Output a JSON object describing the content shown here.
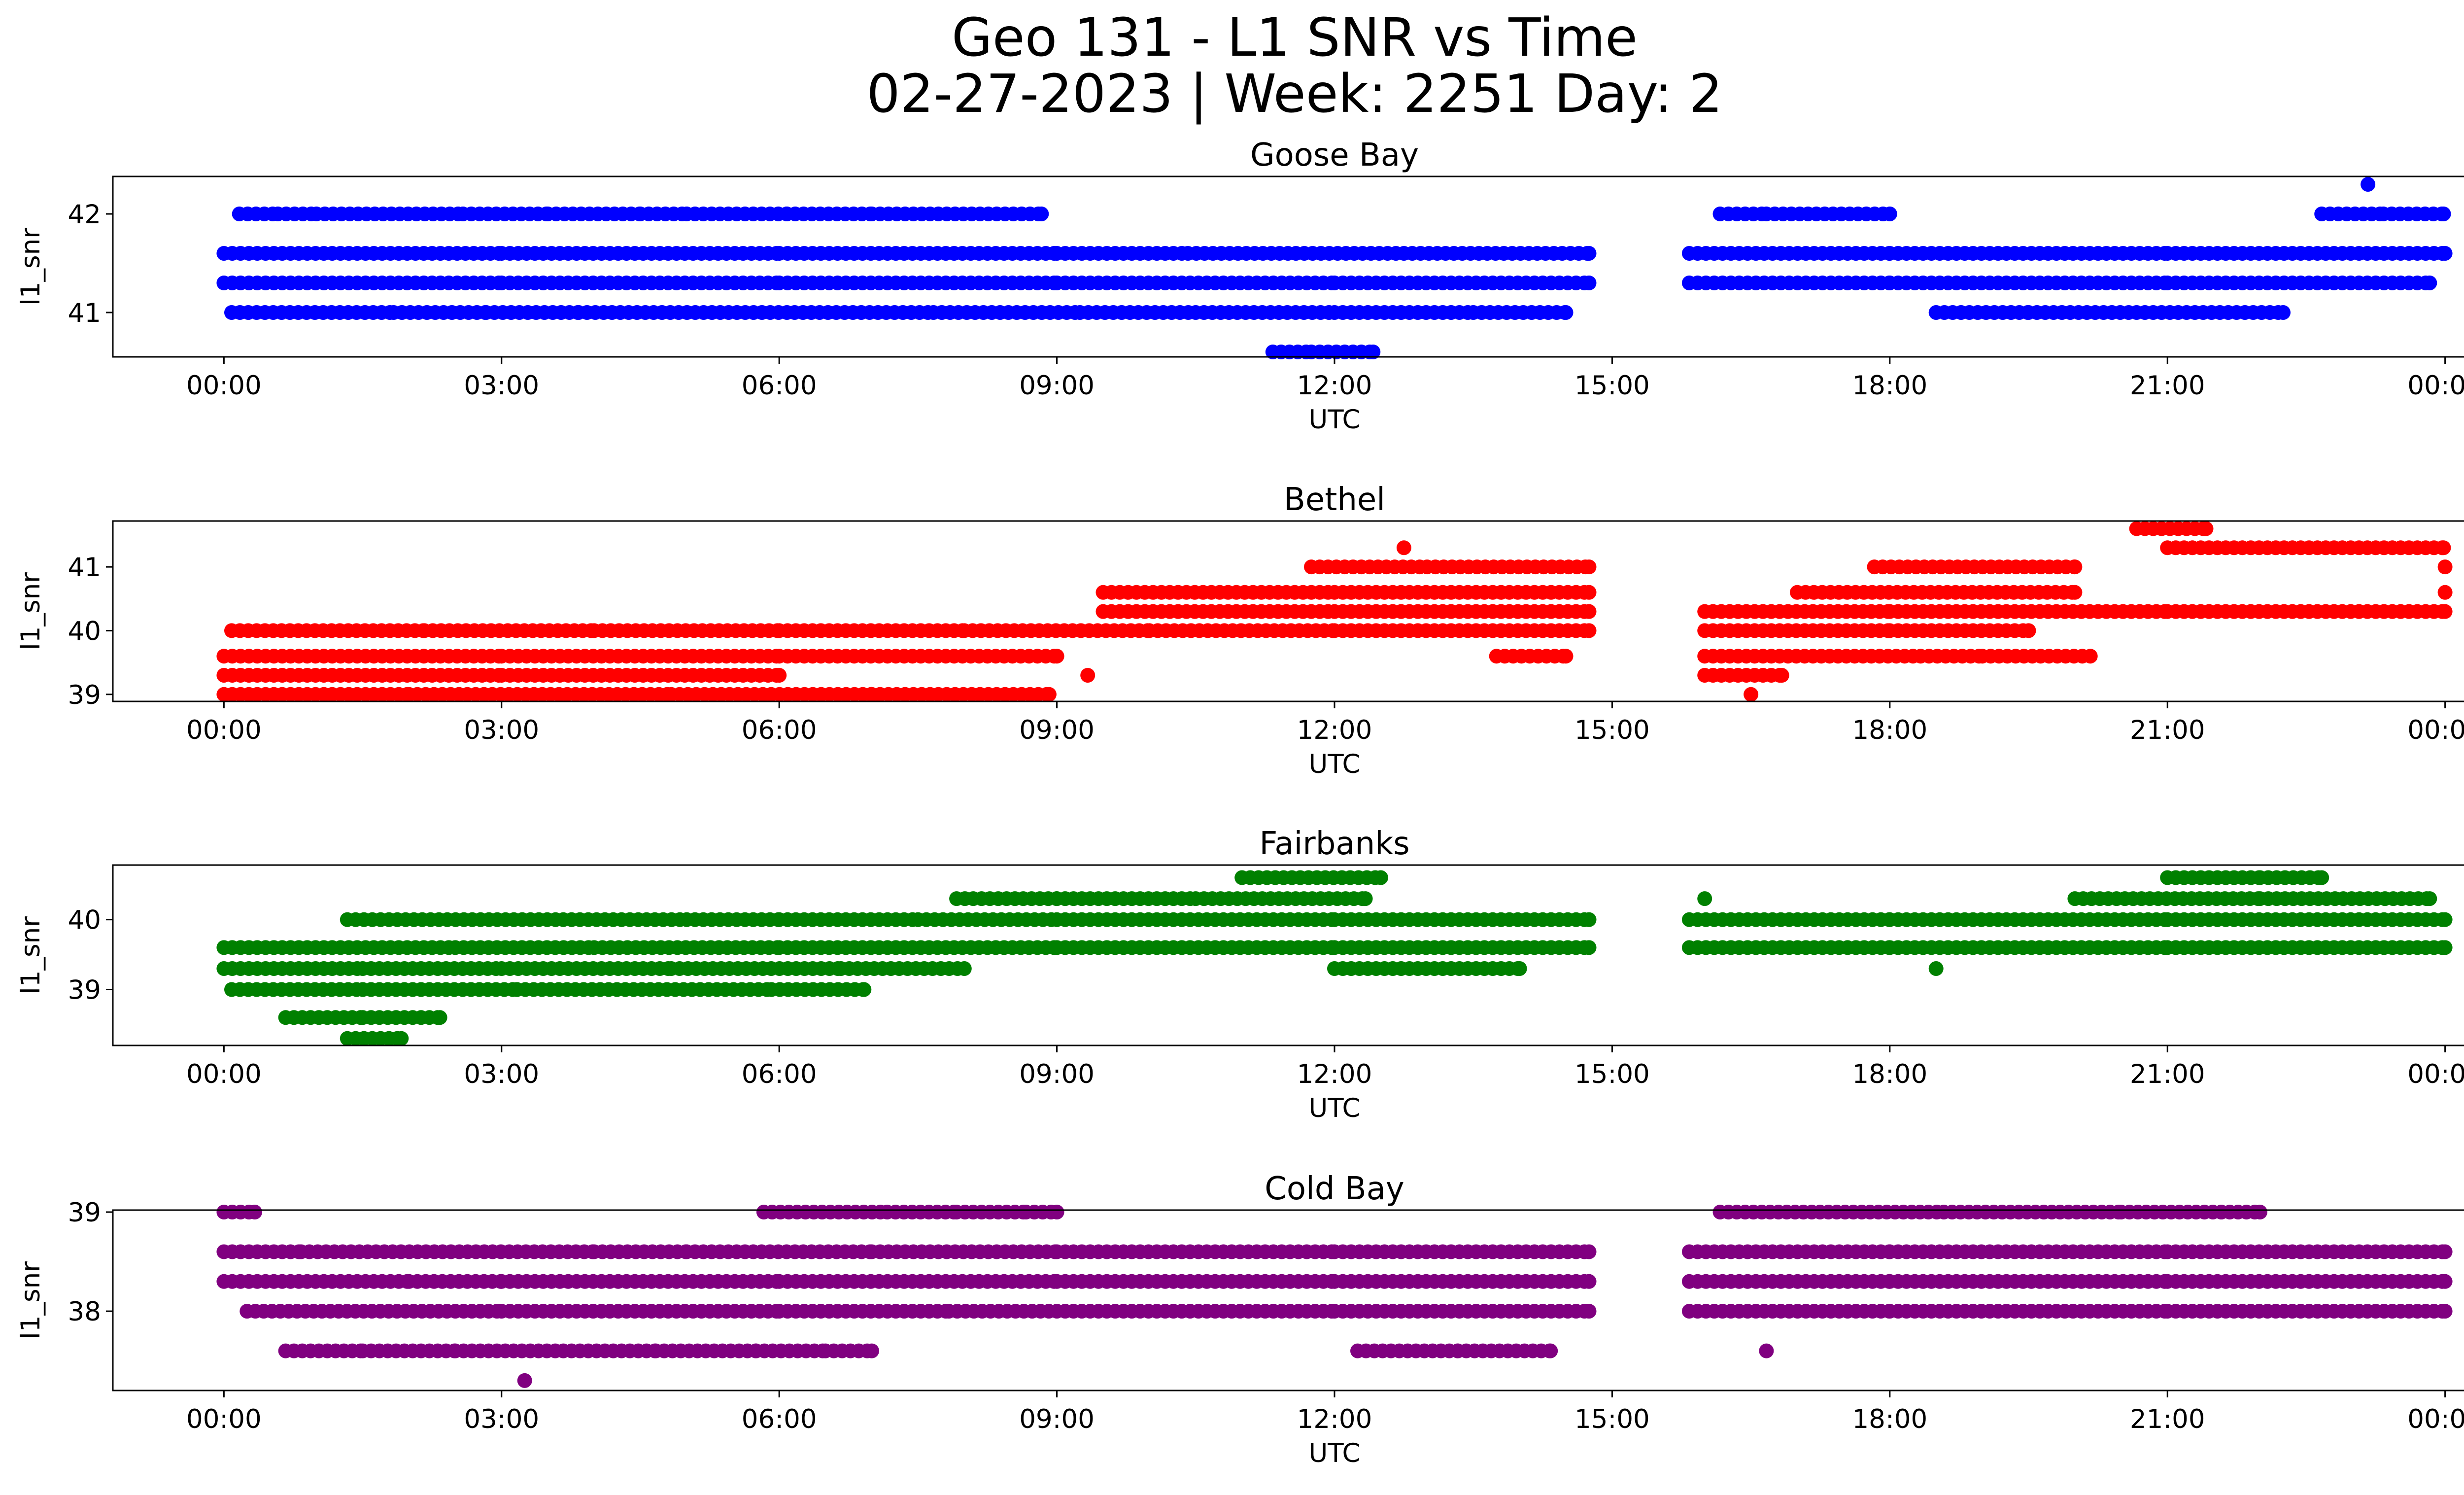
{
  "figure": {
    "title_line1": "Geo 131 - L1 SNR vs Time",
    "title_line2": "02-27-2023 | Week: 2251 Day: 2"
  },
  "chart_data": [
    {
      "type": "scatter",
      "title": "Goose Bay",
      "xlabel": "UTC",
      "ylabel": "l1_snr",
      "color": "#0000ff",
      "xlim": [
        "2023-02-27T00:00",
        "2023-02-28T00:00"
      ],
      "ylim": [
        40.55,
        42.38
      ],
      "y_ticks": [
        "41",
        "42"
      ],
      "x_ticks": [
        "00:00",
        "03:00",
        "06:00",
        "09:00",
        "12:00",
        "15:00",
        "18:00",
        "21:00",
        "00:00"
      ],
      "points": [
        {
          "x": "2023-02-27T00:00",
          "y": 41.6
        },
        {
          "x": "2023-02-27T03:00",
          "y": 41.6
        },
        {
          "x": "2023-02-27T06:00",
          "y": 41.6
        },
        {
          "x": "2023-02-27T09:00",
          "y": 41.6
        },
        {
          "x": "2023-02-27T10:25",
          "y": 41.6
        },
        {
          "x": "2023-02-27T11:35",
          "y": 41.6
        },
        {
          "x": "2023-02-27T12:45",
          "y": 41.6
        },
        {
          "x": "2023-02-27T14:45",
          "y": 41.6
        },
        {
          "x": "2023-02-27T15:50",
          "y": 41.6
        },
        {
          "x": "2023-02-27T18:00",
          "y": 41.6
        },
        {
          "x": "2023-02-27T21:00",
          "y": 41.6
        },
        {
          "x": "2023-02-28T00:00",
          "y": 41.6
        },
        {
          "x": "2023-02-27T00:00",
          "y": 41.3
        },
        {
          "x": "2023-02-27T03:00",
          "y": 41.3
        },
        {
          "x": "2023-02-27T06:00",
          "y": 41.3
        },
        {
          "x": "2023-02-27T09:00",
          "y": 41.3
        },
        {
          "x": "2023-02-27T12:00",
          "y": 41.3
        },
        {
          "x": "2023-02-27T14:45",
          "y": 41.3
        },
        {
          "x": "2023-02-27T15:50",
          "y": 41.3
        },
        {
          "x": "2023-02-27T18:00",
          "y": 41.3
        },
        {
          "x": "2023-02-27T21:00",
          "y": 41.3
        },
        {
          "x": "2023-02-27T23:50",
          "y": 41.3
        },
        {
          "x": "2023-02-27T00:10",
          "y": 42.0
        },
        {
          "x": "2023-02-27T00:35",
          "y": 42.0
        },
        {
          "x": "2023-02-27T01:00",
          "y": 42.0
        },
        {
          "x": "2023-02-27T02:35",
          "y": 42.0
        },
        {
          "x": "2023-02-27T03:30",
          "y": 42.0
        },
        {
          "x": "2023-02-27T04:30",
          "y": 42.0
        },
        {
          "x": "2023-02-27T05:00",
          "y": 42.0
        },
        {
          "x": "2023-02-27T06:05",
          "y": 42.0
        },
        {
          "x": "2023-02-27T07:00",
          "y": 42.0
        },
        {
          "x": "2023-02-27T08:50",
          "y": 42.0
        },
        {
          "x": "2023-02-27T16:10",
          "y": 42.0
        },
        {
          "x": "2023-02-27T16:40",
          "y": 42.0
        },
        {
          "x": "2023-02-27T18:00",
          "y": 42.0
        },
        {
          "x": "2023-02-27T22:40",
          "y": 42.0
        },
        {
          "x": "2023-02-27T23:20",
          "y": 42.0
        },
        {
          "x": "2023-02-27T23:59",
          "y": 42.0
        },
        {
          "x": "2023-02-27T23:10",
          "y": 42.3
        },
        {
          "x": "2023-02-27T00:05",
          "y": 41.0
        },
        {
          "x": "2023-02-27T01:50",
          "y": 41.0
        },
        {
          "x": "2023-02-27T02:50",
          "y": 41.0
        },
        {
          "x": "2023-02-27T03:50",
          "y": 41.0
        },
        {
          "x": "2023-02-27T06:10",
          "y": 41.0
        },
        {
          "x": "2023-02-27T07:40",
          "y": 41.0
        },
        {
          "x": "2023-02-27T09:15",
          "y": 41.0
        },
        {
          "x": "2023-02-27T10:30",
          "y": 41.0
        },
        {
          "x": "2023-02-27T12:00",
          "y": 41.0
        },
        {
          "x": "2023-02-27T13:30",
          "y": 41.0
        },
        {
          "x": "2023-02-27T14:30",
          "y": 41.0
        },
        {
          "x": "2023-02-27T18:30",
          "y": 41.0
        },
        {
          "x": "2023-02-27T19:30",
          "y": 41.0
        },
        {
          "x": "2023-02-27T20:40",
          "y": 41.0
        },
        {
          "x": "2023-02-27T22:15",
          "y": 41.0
        },
        {
          "x": "2023-02-27T11:20",
          "y": 40.6
        },
        {
          "x": "2023-02-27T11:45",
          "y": 40.6
        },
        {
          "x": "2023-02-27T12:25",
          "y": 40.6
        }
      ]
    },
    {
      "type": "scatter",
      "title": "Bethel",
      "xlabel": "UTC",
      "ylabel": "l1_snr",
      "color": "#ff0000",
      "xlim": [
        "2023-02-27T00:00",
        "2023-02-28T00:00"
      ],
      "ylim": [
        38.89,
        41.72
      ],
      "y_ticks": [
        "39",
        "40",
        "41"
      ],
      "x_ticks": [
        "00:00",
        "03:00",
        "06:00",
        "09:00",
        "12:00",
        "15:00",
        "18:00",
        "21:00",
        "00:00"
      ],
      "points": [
        {
          "x": "2023-02-27T00:00",
          "y": 39.6
        },
        {
          "x": "2023-02-27T03:00",
          "y": 39.6
        },
        {
          "x": "2023-02-27T06:00",
          "y": 39.6
        },
        {
          "x": "2023-02-27T09:00",
          "y": 39.6
        },
        {
          "x": "2023-02-27T00:05",
          "y": 40.0
        },
        {
          "x": "2023-02-27T02:10",
          "y": 40.0
        },
        {
          "x": "2023-02-27T04:00",
          "y": 40.0
        },
        {
          "x": "2023-02-27T06:00",
          "y": 40.0
        },
        {
          "x": "2023-02-27T08:00",
          "y": 40.0
        },
        {
          "x": "2023-02-27T10:00",
          "y": 40.0
        },
        {
          "x": "2023-02-27T12:00",
          "y": 40.0
        },
        {
          "x": "2023-02-27T14:45",
          "y": 40.0
        },
        {
          "x": "2023-02-27T16:00",
          "y": 40.0
        },
        {
          "x": "2023-02-27T18:00",
          "y": 40.0
        },
        {
          "x": "2023-02-27T19:30",
          "y": 40.0
        },
        {
          "x": "2023-02-27T00:00",
          "y": 39.3
        },
        {
          "x": "2023-02-27T03:00",
          "y": 39.3
        },
        {
          "x": "2023-02-27T06:00",
          "y": 39.3
        },
        {
          "x": "2023-02-27T09:20",
          "y": 39.3
        },
        {
          "x": "2023-02-27T16:00",
          "y": 39.3
        },
        {
          "x": "2023-02-27T16:50",
          "y": 39.3
        },
        {
          "x": "2023-02-27T00:00",
          "y": 39.0
        },
        {
          "x": "2023-02-27T02:00",
          "y": 39.0
        },
        {
          "x": "2023-02-27T04:50",
          "y": 39.0
        },
        {
          "x": "2023-02-27T07:00",
          "y": 39.0
        },
        {
          "x": "2023-02-27T08:55",
          "y": 39.0
        },
        {
          "x": "2023-02-27T16:30",
          "y": 39.0
        },
        {
          "x": "2023-02-27T09:30",
          "y": 40.3
        },
        {
          "x": "2023-02-27T12:00",
          "y": 40.3
        },
        {
          "x": "2023-02-27T14:45",
          "y": 40.3
        },
        {
          "x": "2023-02-27T16:00",
          "y": 40.3
        },
        {
          "x": "2023-02-27T18:00",
          "y": 40.3
        },
        {
          "x": "2023-02-27T21:00",
          "y": 40.3
        },
        {
          "x": "2023-02-28T00:00",
          "y": 40.3
        },
        {
          "x": "2023-02-27T09:30",
          "y": 40.6
        },
        {
          "x": "2023-02-27T12:00",
          "y": 40.6
        },
        {
          "x": "2023-02-27T14:45",
          "y": 40.6
        },
        {
          "x": "2023-02-27T17:00",
          "y": 40.6
        },
        {
          "x": "2023-02-27T20:00",
          "y": 40.6
        },
        {
          "x": "2023-02-28T00:00",
          "y": 40.6
        },
        {
          "x": "2023-02-27T11:45",
          "y": 41.0
        },
        {
          "x": "2023-02-27T13:00",
          "y": 41.0
        },
        {
          "x": "2023-02-27T14:45",
          "y": 41.0
        },
        {
          "x": "2023-02-27T17:50",
          "y": 41.0
        },
        {
          "x": "2023-02-27T20:00",
          "y": 41.0
        },
        {
          "x": "2023-02-28T00:00",
          "y": 41.0
        },
        {
          "x": "2023-02-27T12:45",
          "y": 41.3
        },
        {
          "x": "2023-02-27T21:00",
          "y": 41.3
        },
        {
          "x": "2023-02-27T23:59",
          "y": 41.3
        },
        {
          "x": "2023-02-27T20:40",
          "y": 41.6
        },
        {
          "x": "2023-02-27T21:25",
          "y": 41.6
        },
        {
          "x": "2023-02-27T13:45",
          "y": 39.6
        },
        {
          "x": "2023-02-27T14:30",
          "y": 39.6
        },
        {
          "x": "2023-02-27T16:00",
          "y": 39.6
        },
        {
          "x": "2023-02-27T18:20",
          "y": 39.6
        },
        {
          "x": "2023-02-27T19:00",
          "y": 39.6
        },
        {
          "x": "2023-02-27T20:10",
          "y": 39.6
        }
      ]
    },
    {
      "type": "scatter",
      "title": "Fairbanks",
      "xlabel": "UTC",
      "ylabel": "l1_snr",
      "color": "#008000",
      "xlim": [
        "2023-02-27T00:00",
        "2023-02-28T00:00"
      ],
      "ylim": [
        38.2,
        40.78
      ],
      "y_ticks": [
        "39",
        "40"
      ],
      "x_ticks": [
        "00:00",
        "03:00",
        "06:00",
        "09:00",
        "12:00",
        "15:00",
        "18:00",
        "21:00",
        "00:00"
      ],
      "points": [
        {
          "x": "2023-02-27T00:00",
          "y": 39.3
        },
        {
          "x": "2023-02-27T01:30",
          "y": 39.3
        },
        {
          "x": "2023-02-27T03:00",
          "y": 39.3
        },
        {
          "x": "2023-02-27T00:05",
          "y": 39.0
        },
        {
          "x": "2023-02-27T01:30",
          "y": 39.0
        },
        {
          "x": "2023-02-27T03:10",
          "y": 39.0
        },
        {
          "x": "2023-02-27T00:00",
          "y": 39.6
        },
        {
          "x": "2023-02-27T02:30",
          "y": 39.6
        },
        {
          "x": "2023-02-27T04:00",
          "y": 39.6
        },
        {
          "x": "2023-02-27T06:00",
          "y": 39.6
        },
        {
          "x": "2023-02-27T09:00",
          "y": 39.6
        },
        {
          "x": "2023-02-27T12:00",
          "y": 39.6
        },
        {
          "x": "2023-02-27T14:45",
          "y": 39.6
        },
        {
          "x": "2023-02-27T15:50",
          "y": 39.6
        },
        {
          "x": "2023-02-27T18:00",
          "y": 39.6
        },
        {
          "x": "2023-02-27T21:00",
          "y": 39.6
        },
        {
          "x": "2023-02-28T00:00",
          "y": 39.6
        },
        {
          "x": "2023-02-27T03:40",
          "y": 40.0
        },
        {
          "x": "2023-02-27T05:00",
          "y": 40.0
        },
        {
          "x": "2023-02-27T06:00",
          "y": 40.0
        },
        {
          "x": "2023-02-27T07:30",
          "y": 40.0
        },
        {
          "x": "2023-02-27T09:00",
          "y": 40.0
        },
        {
          "x": "2023-02-27T12:00",
          "y": 40.0
        },
        {
          "x": "2023-02-27T14:45",
          "y": 40.0
        },
        {
          "x": "2023-02-27T15:50",
          "y": 40.0
        },
        {
          "x": "2023-02-27T18:00",
          "y": 40.0
        },
        {
          "x": "2023-02-27T21:00",
          "y": 40.0
        },
        {
          "x": "2023-02-28T00:00",
          "y": 40.0
        },
        {
          "x": "2023-02-27T00:40",
          "y": 38.6
        },
        {
          "x": "2023-02-27T01:30",
          "y": 38.6
        },
        {
          "x": "2023-02-27T02:20",
          "y": 38.6
        },
        {
          "x": "2023-02-27T01:20",
          "y": 38.3
        },
        {
          "x": "2023-02-27T01:55",
          "y": 38.3
        },
        {
          "x": "2023-02-27T01:20",
          "y": 40.0
        },
        {
          "x": "2023-02-27T04:50",
          "y": 39.3
        },
        {
          "x": "2023-02-27T06:40",
          "y": 39.3
        },
        {
          "x": "2023-02-27T08:00",
          "y": 39.3
        },
        {
          "x": "2023-02-27T12:00",
          "y": 39.3
        },
        {
          "x": "2023-02-27T14:00",
          "y": 39.3
        },
        {
          "x": "2023-02-27T18:30",
          "y": 39.3
        },
        {
          "x": "2023-02-27T05:55",
          "y": 39.0
        },
        {
          "x": "2023-02-27T06:55",
          "y": 39.0
        },
        {
          "x": "2023-02-27T07:55",
          "y": 40.3
        },
        {
          "x": "2023-02-27T09:00",
          "y": 40.3
        },
        {
          "x": "2023-02-27T10:30",
          "y": 40.3
        },
        {
          "x": "2023-02-27T12:20",
          "y": 40.3
        },
        {
          "x": "2023-02-27T16:00",
          "y": 40.3
        },
        {
          "x": "2023-02-27T20:00",
          "y": 40.3
        },
        {
          "x": "2023-02-27T22:00",
          "y": 40.3
        },
        {
          "x": "2023-02-27T23:50",
          "y": 40.3
        },
        {
          "x": "2023-02-27T11:00",
          "y": 40.6
        },
        {
          "x": "2023-02-27T12:30",
          "y": 40.6
        },
        {
          "x": "2023-02-27T21:00",
          "y": 40.6
        },
        {
          "x": "2023-02-27T22:00",
          "y": 40.6
        },
        {
          "x": "2023-02-27T22:40",
          "y": 40.6
        }
      ]
    },
    {
      "type": "scatter",
      "title": "Cold Bay",
      "xlabel": "UTC",
      "ylabel": "l1_snr",
      "color": "#800080",
      "xlim": [
        "2023-02-27T00:00",
        "2023-02-28T00:00"
      ],
      "ylim": [
        37.2,
        39.02
      ],
      "y_ticks": [
        "38",
        "39"
      ],
      "x_ticks": [
        "00:00",
        "03:00",
        "06:00",
        "09:00",
        "12:00",
        "15:00",
        "18:00",
        "21:00",
        "00:00"
      ],
      "points": [
        {
          "x": "2023-02-27T00:00",
          "y": 39.0
        },
        {
          "x": "2023-02-27T00:20",
          "y": 39.0
        },
        {
          "x": "2023-02-27T05:50",
          "y": 39.0
        },
        {
          "x": "2023-02-27T07:10",
          "y": 39.0
        },
        {
          "x": "2023-02-27T07:55",
          "y": 39.0
        },
        {
          "x": "2023-02-27T08:40",
          "y": 39.0
        },
        {
          "x": "2023-02-27T09:00",
          "y": 39.0
        },
        {
          "x": "2023-02-27T16:10",
          "y": 39.0
        },
        {
          "x": "2023-02-27T18:35",
          "y": 39.0
        },
        {
          "x": "2023-02-27T19:45",
          "y": 39.0
        },
        {
          "x": "2023-02-27T20:30",
          "y": 39.0
        },
        {
          "x": "2023-02-27T21:35",
          "y": 39.0
        },
        {
          "x": "2023-02-27T22:00",
          "y": 39.0
        },
        {
          "x": "2023-02-27T00:00",
          "y": 38.6
        },
        {
          "x": "2023-02-27T00:50",
          "y": 38.6
        },
        {
          "x": "2023-02-27T04:00",
          "y": 38.6
        },
        {
          "x": "2023-02-27T05:00",
          "y": 38.6
        },
        {
          "x": "2023-02-27T07:00",
          "y": 38.6
        },
        {
          "x": "2023-02-27T09:00",
          "y": 38.6
        },
        {
          "x": "2023-02-27T12:00",
          "y": 38.6
        },
        {
          "x": "2023-02-27T14:45",
          "y": 38.6
        },
        {
          "x": "2023-02-27T15:50",
          "y": 38.6
        },
        {
          "x": "2023-02-27T18:00",
          "y": 38.6
        },
        {
          "x": "2023-02-27T21:00",
          "y": 38.6
        },
        {
          "x": "2023-02-28T00:00",
          "y": 38.6
        },
        {
          "x": "2023-02-27T00:00",
          "y": 38.3
        },
        {
          "x": "2023-02-27T02:00",
          "y": 38.3
        },
        {
          "x": "2023-02-27T03:00",
          "y": 38.3
        },
        {
          "x": "2023-02-27T06:00",
          "y": 38.3
        },
        {
          "x": "2023-02-27T09:00",
          "y": 38.3
        },
        {
          "x": "2023-02-27T12:00",
          "y": 38.3
        },
        {
          "x": "2023-02-27T14:45",
          "y": 38.3
        },
        {
          "x": "2023-02-27T15:50",
          "y": 38.3
        },
        {
          "x": "2023-02-27T18:00",
          "y": 38.3
        },
        {
          "x": "2023-02-27T21:00",
          "y": 38.3
        },
        {
          "x": "2023-02-28T00:00",
          "y": 38.3
        },
        {
          "x": "2023-02-27T00:15",
          "y": 38.0
        },
        {
          "x": "2023-02-27T03:00",
          "y": 38.0
        },
        {
          "x": "2023-02-27T06:00",
          "y": 38.0
        },
        {
          "x": "2023-02-27T07:50",
          "y": 38.0
        },
        {
          "x": "2023-02-27T09:00",
          "y": 38.0
        },
        {
          "x": "2023-02-27T12:00",
          "y": 38.0
        },
        {
          "x": "2023-02-27T14:45",
          "y": 38.0
        },
        {
          "x": "2023-02-27T15:50",
          "y": 38.0
        },
        {
          "x": "2023-02-27T18:00",
          "y": 38.0
        },
        {
          "x": "2023-02-27T21:00",
          "y": 38.0
        },
        {
          "x": "2023-02-28T00:00",
          "y": 38.0
        },
        {
          "x": "2023-02-27T00:40",
          "y": 37.6
        },
        {
          "x": "2023-02-27T01:30",
          "y": 37.6
        },
        {
          "x": "2023-02-27T02:30",
          "y": 37.6
        },
        {
          "x": "2023-02-27T03:40",
          "y": 37.6
        },
        {
          "x": "2023-02-27T04:40",
          "y": 37.6
        },
        {
          "x": "2023-02-27T05:45",
          "y": 37.6
        },
        {
          "x": "2023-02-27T06:30",
          "y": 37.6
        },
        {
          "x": "2023-02-27T07:00",
          "y": 37.6
        },
        {
          "x": "2023-02-27T12:15",
          "y": 37.6
        },
        {
          "x": "2023-02-27T13:20",
          "y": 37.6
        },
        {
          "x": "2023-02-27T14:20",
          "y": 37.6
        },
        {
          "x": "2023-02-27T16:40",
          "y": 37.6
        },
        {
          "x": "2023-02-27T03:15",
          "y": 37.3
        }
      ]
    }
  ]
}
